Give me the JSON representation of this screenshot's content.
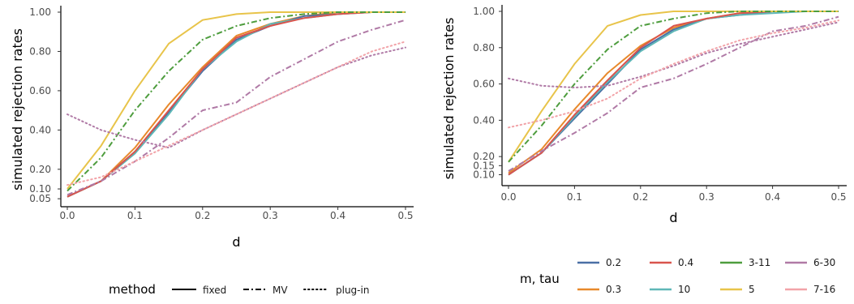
{
  "colors": {
    "0.2": "#4a6fa5",
    "0.3": "#e8892b",
    "0.4": "#d9544d",
    "10": "#5fb7b7",
    "3-11": "#4e9d3e",
    "5": "#e8c44a",
    "6-30": "#b07aa6",
    "7-16": "#f2a3a8"
  },
  "method_legend": {
    "title": "method",
    "items": [
      {
        "label": "fixed",
        "dash": "solid"
      },
      {
        "label": "MV",
        "dash": "dashdot"
      },
      {
        "label": "plug-in",
        "dash": "dotted"
      }
    ]
  },
  "param_legend": {
    "title": "m, tau",
    "items": [
      {
        "label": "0.2",
        "key": "0.2"
      },
      {
        "label": "0.4",
        "key": "0.4"
      },
      {
        "label": "3-11",
        "key": "3-11"
      },
      {
        "label": "6-30",
        "key": "6-30"
      },
      {
        "label": "0.3",
        "key": "0.3"
      },
      {
        "label": "10",
        "key": "10"
      },
      {
        "label": "5",
        "key": "5"
      },
      {
        "label": "7-16",
        "key": "7-16"
      }
    ]
  },
  "chart_data": [
    {
      "type": "line",
      "xlabel": "d",
      "ylabel": "simulated rejection rates",
      "xlim": [
        0,
        0.5
      ],
      "ylim": [
        0.03,
        1.0
      ],
      "x_ticks": [
        "0.0",
        "0.1",
        "0.2",
        "0.3",
        "0.4",
        "0.5"
      ],
      "x_tick_values": [
        0,
        0.1,
        0.2,
        0.3,
        0.4,
        0.5
      ],
      "y_ticks": [
        "0.05",
        "0.10",
        "0.20",
        "0.40",
        "0.60",
        "0.80",
        "1.00"
      ],
      "y_tick_values": [
        0.05,
        0.1,
        0.2,
        0.4,
        0.6,
        0.8,
        1.0
      ],
      "grid": false,
      "x": [
        0,
        0.05,
        0.1,
        0.15,
        0.2,
        0.25,
        0.3,
        0.35,
        0.4,
        0.45,
        0.5
      ],
      "series": [
        {
          "key": "0.3",
          "method": "fixed",
          "values": [
            0.06,
            0.14,
            0.31,
            0.53,
            0.72,
            0.88,
            0.94,
            0.98,
            1.0,
            1.0,
            1.0
          ]
        },
        {
          "key": "0.2",
          "method": "fixed",
          "values": [
            0.06,
            0.14,
            0.29,
            0.49,
            0.7,
            0.86,
            0.93,
            0.98,
            0.99,
            1.0,
            1.0
          ]
        },
        {
          "key": "10",
          "method": "fixed",
          "values": [
            0.06,
            0.14,
            0.28,
            0.48,
            0.71,
            0.85,
            0.94,
            0.97,
            0.99,
            1.0,
            1.0
          ]
        },
        {
          "key": "0.4",
          "method": "fixed",
          "values": [
            0.06,
            0.14,
            0.29,
            0.5,
            0.71,
            0.87,
            0.93,
            0.97,
            0.99,
            1.0,
            1.0
          ]
        },
        {
          "key": "5",
          "method": "fixed",
          "values": [
            0.1,
            0.32,
            0.6,
            0.84,
            0.96,
            0.99,
            1.0,
            1.0,
            1.0,
            1.0,
            1.0
          ]
        },
        {
          "key": "3-11",
          "method": "MV",
          "values": [
            0.09,
            0.26,
            0.5,
            0.7,
            0.86,
            0.93,
            0.97,
            0.99,
            1.0,
            1.0,
            1.0
          ]
        },
        {
          "key": "6-30",
          "method": "MV",
          "values": [
            0.07,
            0.14,
            0.24,
            0.36,
            0.5,
            0.54,
            0.67,
            0.76,
            0.85,
            0.91,
            0.96
          ]
        },
        {
          "key": "6-30",
          "method": "plug-in",
          "values": [
            0.48,
            0.4,
            0.35,
            0.31,
            0.4,
            0.48,
            0.56,
            0.64,
            0.72,
            0.78,
            0.82
          ]
        },
        {
          "key": "7-16",
          "method": "plug-in",
          "values": [
            0.12,
            0.16,
            0.24,
            0.32,
            0.4,
            0.48,
            0.56,
            0.64,
            0.72,
            0.8,
            0.85
          ]
        }
      ]
    },
    {
      "type": "line",
      "xlabel": "d",
      "ylabel": "simulated rejection rates",
      "xlim": [
        0,
        0.5
      ],
      "ylim": [
        0.08,
        1.0
      ],
      "x_ticks": [
        "0.0",
        "0.1",
        "0.2",
        "0.3",
        "0.4",
        "0.5"
      ],
      "x_tick_values": [
        0,
        0.1,
        0.2,
        0.3,
        0.4,
        0.5
      ],
      "y_ticks": [
        "0.10",
        "0.15",
        "0.20",
        "0.40",
        "0.60",
        "0.80",
        "1.00"
      ],
      "y_tick_values": [
        0.1,
        0.15,
        0.2,
        0.4,
        0.6,
        0.8,
        1.0
      ],
      "grid": false,
      "x": [
        0,
        0.05,
        0.1,
        0.15,
        0.2,
        0.25,
        0.3,
        0.35,
        0.4,
        0.45,
        0.5
      ],
      "series": [
        {
          "key": "0.3",
          "method": "fixed",
          "values": [
            0.11,
            0.24,
            0.46,
            0.66,
            0.81,
            0.91,
            0.96,
            0.99,
            1.0,
            1.0,
            1.0
          ]
        },
        {
          "key": "0.2",
          "method": "fixed",
          "values": [
            0.1,
            0.22,
            0.41,
            0.6,
            0.79,
            0.9,
            0.96,
            0.98,
            1.0,
            1.0,
            1.0
          ]
        },
        {
          "key": "10",
          "method": "fixed",
          "values": [
            0.1,
            0.22,
            0.42,
            0.61,
            0.78,
            0.89,
            0.96,
            0.98,
            0.99,
            1.0,
            1.0
          ]
        },
        {
          "key": "0.4",
          "method": "fixed",
          "values": [
            0.1,
            0.22,
            0.43,
            0.62,
            0.8,
            0.92,
            0.96,
            0.99,
            1.0,
            1.0,
            1.0
          ]
        },
        {
          "key": "5",
          "method": "fixed",
          "values": [
            0.17,
            0.45,
            0.71,
            0.92,
            0.98,
            1.0,
            1.0,
            1.0,
            1.0,
            1.0,
            1.0
          ]
        },
        {
          "key": "3-11",
          "method": "MV",
          "values": [
            0.17,
            0.37,
            0.6,
            0.79,
            0.92,
            0.96,
            0.99,
            1.0,
            1.0,
            1.0,
            1.0
          ]
        },
        {
          "key": "6-30",
          "method": "MV",
          "values": [
            0.12,
            0.23,
            0.33,
            0.44,
            0.58,
            0.63,
            0.71,
            0.8,
            0.89,
            0.92,
            0.97
          ]
        },
        {
          "key": "6-30",
          "method": "plug-in",
          "values": [
            0.63,
            0.59,
            0.58,
            0.59,
            0.64,
            0.7,
            0.77,
            0.82,
            0.86,
            0.9,
            0.94
          ]
        },
        {
          "key": "7-16",
          "method": "plug-in",
          "values": [
            0.36,
            0.4,
            0.45,
            0.52,
            0.63,
            0.71,
            0.78,
            0.84,
            0.88,
            0.91,
            0.95
          ]
        }
      ]
    }
  ]
}
